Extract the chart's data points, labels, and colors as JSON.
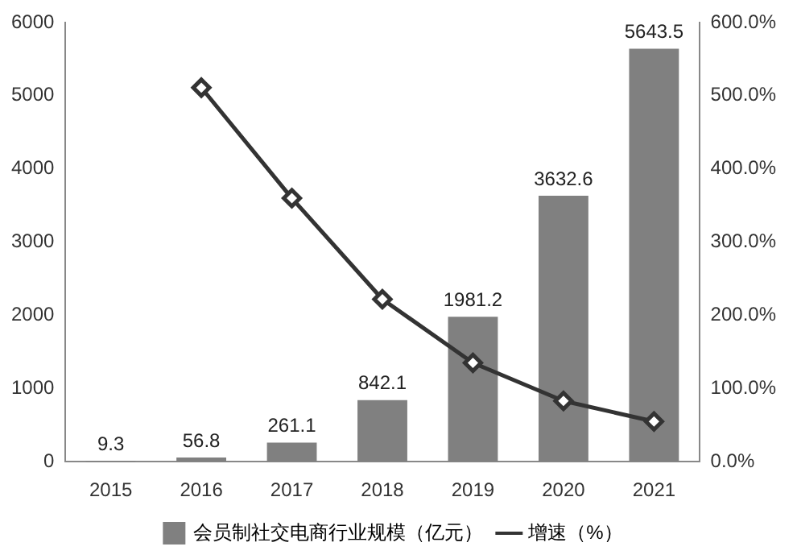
{
  "chart_data": {
    "type": "bar",
    "categories": [
      "2015",
      "2016",
      "2017",
      "2018",
      "2019",
      "2020",
      "2021"
    ],
    "series": [
      {
        "name": "会员制社交电商行业规模（亿元）",
        "color": "#808080",
        "values": [
          9.3,
          56.8,
          261.1,
          842.1,
          1981.2,
          3632.6,
          5643.5
        ],
        "value_labels": [
          "9.3",
          "56.8",
          "261.1",
          "842.1",
          "1981.2",
          "3632.6",
          "5643.5"
        ]
      },
      {
        "name": "增速（%）",
        "type": "line",
        "axis": "y2",
        "color": "#333333",
        "marker": "diamond",
        "values": [
          null,
          511,
          360,
          222,
          135,
          83,
          55
        ]
      }
    ],
    "ylim": [
      0,
      6000
    ],
    "yticks": [
      0,
      1000,
      2000,
      3000,
      4000,
      5000,
      6000
    ],
    "y2lim": [
      0,
      600
    ],
    "y2ticks": [
      {
        "value": 0,
        "label": "0.0%"
      },
      {
        "value": 100,
        "label": "100.0%"
      },
      {
        "value": 200,
        "label": "200.0%"
      },
      {
        "value": 300,
        "label": "300.0%"
      },
      {
        "value": 400,
        "label": "400.0%"
      },
      {
        "value": 500,
        "label": "500.0%"
      },
      {
        "value": 600,
        "label": "600.0%"
      }
    ],
    "grid": false,
    "legend": "bottom"
  }
}
